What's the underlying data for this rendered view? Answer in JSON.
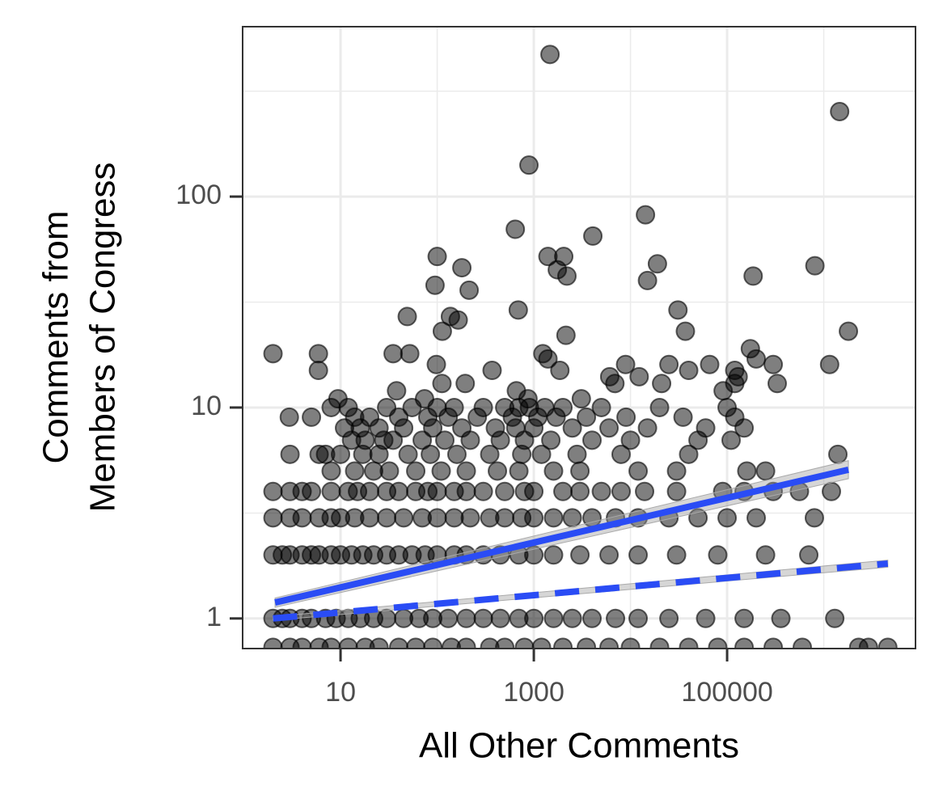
{
  "chart_data": {
    "type": "scatter",
    "xlabel": "All Other Comments",
    "ylabel": [
      "Comments from",
      "Members of Congress"
    ],
    "xscale": "log",
    "yscale": "log",
    "grid": true,
    "xlim": [
      0.97,
      8900000
    ],
    "ylim": [
      0.72,
      639
    ],
    "xticks": [
      10,
      1000,
      100000
    ],
    "yticks": [
      1,
      10,
      100
    ],
    "xminor": [
      100,
      10000,
      1000000
    ],
    "yminor": [
      3.16,
      31.6,
      316
    ],
    "color": "#000000",
    "x": [
      1470,
      1460000,
      890,
      643,
      14300,
      4080,
      100,
      1400,
      2040,
      1750,
      2200,
      180,
      19000,
      15000,
      214,
      95,
      186000,
      810000,
      690,
      31000,
      49,
      137,
      165,
      113,
      37000,
      1800000,
      2150,
      2.0,
      5.9,
      35,
      52,
      98,
      370,
      1240,
      1400,
      1860,
      6100,
      8900,
      12300,
      25000,
      40000,
      66000,
      120000,
      130000,
      174000,
      200000,
      300000,
      330000,
      1150000,
      5.9,
      2.95,
      9.4,
      38,
      74,
      112,
      195,
      660,
      870,
      3100,
      6900,
      21000,
      91000,
      120000,
      8,
      12,
      30,
      55,
      100,
      150,
      300,
      500,
      700,
      900,
      1300,
      2000,
      5000,
      20000,
      100000,
      5,
      14,
      20,
      40,
      80,
      130,
      260,
      600,
      1100,
      1700,
      3500,
      9000,
      35000,
      120000,
      11,
      16,
      25,
      45,
      90,
      180,
      400,
      650,
      1000,
      2500,
      6000,
      15000,
      60000,
      150000,
      13,
      18,
      28,
      35,
      70,
      120,
      220,
      450,
      800,
      1500,
      4000,
      10000,
      50000,
      110000,
      3,
      6,
      7,
      10,
      17,
      25,
      50,
      85,
      160,
      350,
      750,
      1200,
      2800,
      8000,
      40000,
      1400000,
      8,
      14,
      22,
      32,
      60,
      110,
      200,
      420,
      700,
      1600,
      3000,
      12000,
      30000,
      160000,
      250000,
      2,
      3,
      4,
      5,
      8,
      12,
      15,
      20,
      30,
      40,
      60,
      80,
      100,
      150,
      200,
      300,
      500,
      800,
      1000,
      2000,
      3000,
      5000,
      8000,
      14000,
      30000,
      90000,
      150000,
      300000,
      560000,
      1200000,
      2,
      3,
      4,
      6,
      8,
      10,
      14,
      20,
      30,
      45,
      70,
      100,
      150,
      220,
      350,
      500,
      750,
      1000,
      1600,
      2500,
      4000,
      7000,
      12000,
      25000,
      50000,
      100000,
      200000,
      800000,
      2,
      2.5,
      3,
      4,
      5,
      6,
      8,
      10,
      13,
      17,
      22,
      30,
      40,
      55,
      75,
      100,
      150,
      200,
      300,
      450,
      700,
      1000,
      1600,
      3000,
      6000,
      12000,
      30000,
      80000,
      250000,
      700000,
      2,
      2.5,
      3,
      4,
      5,
      7,
      9,
      12,
      16,
      22,
      30,
      45,
      65,
      90,
      130,
      200,
      300,
      450,
      700,
      1000,
      1600,
      2500,
      4000,
      7000,
      12000,
      25000,
      60000,
      150000,
      360000,
      1300000,
      2,
      3,
      4,
      6,
      8,
      12,
      18,
      25,
      40,
      60,
      90,
      140,
      200,
      350,
      500,
      800,
      1200,
      2000,
      3500,
      6000,
      10000,
      20000,
      40000,
      80000,
      150000,
      300000,
      600000,
      2300000,
      2900000,
      4600000
    ],
    "values": [
      472,
      253,
      141,
      70,
      82,
      65,
      52,
      52,
      52,
      45,
      42,
      46,
      48,
      40,
      36,
      38,
      42,
      47,
      29,
      29,
      27,
      27,
      26,
      23,
      23,
      23,
      22,
      18,
      18,
      18,
      18,
      16,
      15,
      18,
      17,
      15,
      14,
      16,
      14,
      16,
      15,
      16,
      15,
      14,
      19,
      17,
      16,
      13,
      16,
      15,
      9,
      11,
      12,
      11,
      13,
      13,
      12,
      11,
      11,
      13,
      13,
      12,
      13,
      10,
      10,
      10,
      10,
      10,
      10,
      10,
      10,
      10,
      10,
      10,
      10,
      10,
      10,
      10,
      9,
      9,
      9,
      9,
      9,
      9,
      9,
      9,
      9,
      9,
      9,
      9,
      9,
      9,
      8,
      8,
      8,
      8,
      8,
      8,
      8,
      8,
      8,
      8,
      8,
      8,
      8,
      8,
      7,
      7,
      7,
      7,
      7,
      7,
      7,
      7,
      7,
      7,
      7,
      7,
      7,
      7,
      6,
      6,
      6,
      6,
      6,
      6,
      6,
      6,
      6,
      6,
      6,
      6,
      6,
      6,
      6,
      6,
      5,
      5,
      5,
      5,
      5,
      5,
      5,
      5,
      5,
      5,
      5,
      5,
      5,
      5,
      5,
      4,
      4,
      4,
      4,
      4,
      4,
      4,
      4,
      4,
      4,
      4,
      4,
      4,
      4,
      4,
      4,
      4,
      4,
      4,
      4,
      4,
      4,
      4,
      4,
      4,
      4,
      4,
      4,
      4,
      4,
      3,
      3,
      3,
      3,
      3,
      3,
      3,
      3,
      3,
      3,
      3,
      3,
      3,
      3,
      3,
      3,
      3,
      3,
      3,
      3,
      3,
      3,
      3,
      3,
      3,
      3,
      3,
      3,
      2,
      2,
      2,
      2,
      2,
      2,
      2,
      2,
      2,
      2,
      2,
      2,
      2,
      2,
      2,
      2,
      2,
      2,
      2,
      2,
      2,
      2,
      2,
      2,
      2,
      2,
      2,
      2,
      2,
      2,
      1,
      1,
      1,
      1,
      1,
      1,
      1,
      1,
      1,
      1,
      1,
      1,
      1,
      1,
      1,
      1,
      1,
      1,
      1,
      1,
      1,
      1,
      1,
      1,
      1,
      1,
      1,
      1,
      1,
      1,
      0.73,
      0.73,
      0.73,
      0.73,
      0.73,
      0.73,
      0.73,
      0.73,
      0.73,
      0.73,
      0.73,
      0.73,
      0.73,
      0.73,
      0.73,
      0.73,
      0.73,
      0.73,
      0.73,
      0.73,
      0.73,
      0.73,
      0.73,
      0.73,
      0.73,
      0.73,
      0.73,
      0.73,
      0.73,
      0.73
    ],
    "fits": [
      {
        "x": [
          2.1,
          1800000
        ],
        "values": [
          1.19,
          5.07
        ],
        "lower": [
          1.13,
          4.6
        ],
        "upper": [
          1.25,
          5.6
        ],
        "color": "#2a4cf5",
        "dash": false
      },
      {
        "x": [
          2.0,
          4600000
        ],
        "values": [
          1.0,
          1.82
        ],
        "lower": [
          0.98,
          1.75
        ],
        "upper": [
          1.02,
          1.89
        ],
        "color": "#2a4cf5",
        "dash": true
      }
    ]
  }
}
